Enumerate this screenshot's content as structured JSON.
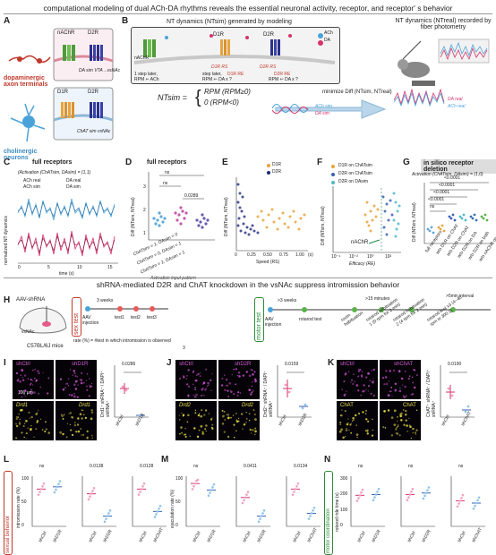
{
  "headers": {
    "top": "computational modeling of dual ACh-DA rhythms reveals the essential neuronal activity, receptor, and receptor' s behavior",
    "middle": "shRNA-mediated D2R and ChAT knockdown in the vsNAc suppress intromission behavior"
  },
  "panel_letters": [
    "A",
    "B",
    "C",
    "D",
    "E",
    "F",
    "G",
    "H",
    "I",
    "J",
    "K",
    "L",
    "M",
    "N"
  ],
  "panelA": {
    "dopamine_label": "dopaminergic axon terminals",
    "cholinergic_label": "cholinergic neurons",
    "receptor_nachr": "nAChR",
    "receptor_d2r": "D2R",
    "receptor_d1r": "D1R",
    "da_sim": "DA sim VTA→vsNAc",
    "chat_sim": "ChAT sim vsNAc"
  },
  "panelB": {
    "title": "NT dynamics (NTsim) generated by modeling",
    "right_title": "NT dynamics (NTreal) recorded by fiber photometry",
    "legend_ach": "ACh",
    "legend_da": "DA",
    "d1r": "D1R",
    "d2r": "D2R",
    "nachr": "nAChR",
    "rs_d1": "D1R RS",
    "re_d1": "D1R RE",
    "rs_d2": "D2R RS",
    "re_d2": "D2R RE",
    "step1": "1 step later,",
    "rpm_ach": "RPM ⇐ ACh",
    "step2": "step later,",
    "rpm_da": "RPM ⇐ DA x ?",
    "formula_lhs": "NTsim =",
    "formula_case1": "RPM (RPM≥0)",
    "formula_case2": "0      (RPM<0)",
    "minimize": "minimize Diff (NTsim, NTreal)",
    "ach_sim": "ACh sim",
    "da_sim": "DA sim",
    "ach_real": "ACh real",
    "da_real": "DA real"
  },
  "panelC": {
    "title": "full receptors",
    "activation": "(Activation (ChATsim, DAsim) = (1,1)",
    "legend": [
      "ACh real",
      "DA real",
      "ACh sim",
      "DA sim"
    ],
    "ylabel": "normalized NT dynamics",
    "xlabel": "time (s)",
    "xticks": [
      "0",
      "5",
      "10",
      "15"
    ]
  },
  "panelD": {
    "title": "full receptors",
    "ylabel": "Diff (NTsim, NTreal)",
    "ns1": "ns",
    "ns2": "ns",
    "p": "0.0289",
    "yticks": [
      "1",
      "2",
      "3"
    ],
    "categories": [
      "ChATsim = 1, DAsim = 0",
      "ChATsim = 0, DAsim = 1",
      "ChATsim = 1, DAsim = 1"
    ],
    "xlabel": "Activation input pattern"
  },
  "panelE": {
    "legend": [
      "D1R",
      "D2R"
    ],
    "ylabel": "Diff (NTsim, NTreal)",
    "xlabel": "Speed (RS)",
    "xticks": [
      "0",
      "0.25",
      "0.50",
      "0.75",
      "1.00"
    ],
    "yticks": [
      "1",
      "2",
      "3"
    ],
    "xunit": "(s)"
  },
  "panelF": {
    "legend": [
      "D1R on ChATsim",
      "D2R on ChATsim",
      "D2R on DAsim"
    ],
    "ylabel": "Diff (NTsim, NTreal)",
    "xlabel": "Efficacy (RE)",
    "xticks": [
      "10⁻⁴",
      "10⁻²",
      "10⁰",
      "10²"
    ],
    "annotation": "nAChR"
  },
  "panelG": {
    "title": "in silico receptor deletion",
    "activation": "Activation (ChATsim, DAsim) = (1,0)",
    "pvals": [
      "<0.0001",
      "<0.0001",
      "<0.0001",
      "<0.0001"
    ],
    "ns": "ns",
    "ylabel": "Diff (NTsim, NTreal)",
    "categories": [
      "full receptors",
      "w/o D1R on ChAT",
      "w/o D2R on ChAT",
      "w/o D2R on DA",
      "w/o D2R on both",
      "w/o nAChR on DA"
    ]
  },
  "panelH": {
    "vector": "AAV-shRNA",
    "region": "vsNAc",
    "mice": "C57BL/6J mice",
    "sex_test": "sex test",
    "weeks1": "3 weeks",
    "aav": "AAV injection",
    "tests": [
      "test1",
      "test2",
      "test3"
    ],
    "rate_formula": "rate (%) = #test in which intromission is observed",
    "rate_den": "3",
    "motor_test": "motor test",
    "weeks2": ">3 weeks",
    "rotarod": "rotarod test",
    "minutes": ">15 minutes",
    "interval": ">5min interval",
    "steps": [
      "room habituation",
      "rotarod habituation 1 (0 rpm for 2 min)",
      "rotarod habituation 2 (4 rpm for 2 min)",
      "rotarod test x3 (4~40 rpm in 300 s)"
    ]
  },
  "panelI": {
    "img_labels": [
      "shCtrl",
      "shD1R",
      "Drd1",
      "Drd1"
    ],
    "scale": "100 μm",
    "p": "0.0286",
    "ylabel": "Drd1⁺ shRNA⁺ / DAPI⁺ shRNA⁺",
    "xcats": [
      "shCtrl",
      "shD1R"
    ]
  },
  "panelJ": {
    "img_labels": [
      "shCtrl",
      "shD2R",
      "Drd2",
      "Drd2"
    ],
    "p": "0.0159",
    "ylabel": "Drd2⁺ shRNA⁺ / DAPI⁺ shRNA⁺",
    "xcats": [
      "shCtrl",
      "shD2R"
    ]
  },
  "panelK": {
    "img_labels": [
      "shCtrl",
      "shChAT",
      "ChAT",
      "ChAT"
    ],
    "p": "0.0190",
    "ylabel": "ChAT⁺ shRNA⁺ / DAPI⁺ shRNA⁺",
    "xcats": [
      "shCtrl",
      "shChAT"
    ]
  },
  "panelL": {
    "side": "sexual behavior",
    "ylabel": "intromission rate (%)",
    "pvals": [
      "ns",
      "0.0138",
      "0.0128"
    ],
    "yticks": [
      "0",
      "50",
      "100"
    ],
    "xcats": [
      [
        "shCtrl",
        "shD1R"
      ],
      [
        "shCtrl",
        "shD2R"
      ],
      [
        "shCtrl",
        "shChAT"
      ]
    ]
  },
  "panelM": {
    "ylabel": "ejaculation rate (%)",
    "pvals": [
      "ns",
      "0.0411",
      "0.0134"
    ],
    "yticks": [
      "0",
      "50",
      "100"
    ],
    "xcats": [
      [
        "shCtrl",
        "shD1R"
      ],
      [
        "shCtrl",
        "shD2R"
      ],
      [
        "shCtrl",
        "shChAT"
      ]
    ]
  },
  "panelN": {
    "side": "motor coordination",
    "ylabel": "rotarod ride time (s)",
    "pvals": [
      "ns",
      "ns",
      "ns"
    ],
    "yticks": [
      "0",
      "100",
      "200",
      "300"
    ],
    "xcats": [
      [
        "shCtrl",
        "shD1R"
      ],
      [
        "shCtrl",
        "shD2R"
      ],
      [
        "shCtrl",
        "shChAT"
      ]
    ]
  },
  "colors": {
    "ach": "#4aa3d8",
    "da": "#d6336c",
    "d1r": "#e8a33d",
    "d2r": "#1f2a7a",
    "green": "#59b34a",
    "red": "#c0392b",
    "magenta": "#b44fc0",
    "yellow": "#e8e04a"
  }
}
